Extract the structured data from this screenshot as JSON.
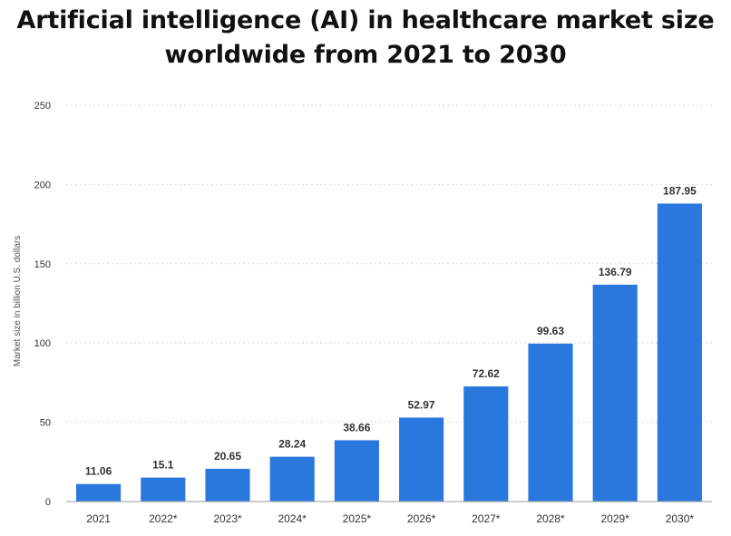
{
  "chart_data": {
    "type": "bar",
    "title_line1": "Artificial intelligence (AI) in healthcare market size",
    "title_line2": "worldwide from 2021 to 2030",
    "ylabel": "Market size in billion U.S. dollars",
    "xlabel": "",
    "ylim": [
      0,
      250
    ],
    "yticks": [
      0,
      50,
      100,
      150,
      200,
      250
    ],
    "grid": true,
    "categories": [
      "2021",
      "2022*",
      "2023*",
      "2024*",
      "2025*",
      "2026*",
      "2027*",
      "2028*",
      "2029*",
      "2030*"
    ],
    "values": [
      11.06,
      15.1,
      20.65,
      28.24,
      38.66,
      52.97,
      72.62,
      99.63,
      136.79,
      187.95
    ],
    "value_labels": [
      "11.06",
      "15.1",
      "20.65",
      "28.24",
      "38.66",
      "52.97",
      "72.62",
      "99.63",
      "136.79",
      "187.95"
    ],
    "bar_color": "#2a77dd",
    "grid_color": "#d9d9d9",
    "text_color": "#333333"
  }
}
